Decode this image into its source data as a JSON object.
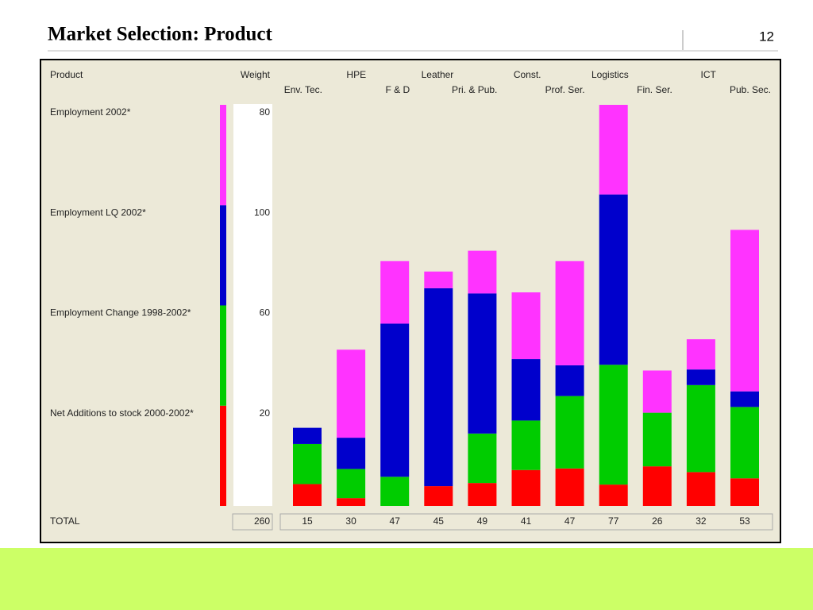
{
  "slide_title": "Market Selection: Product",
  "page_number": "12",
  "chart_data": {
    "type": "bar",
    "stacked": true,
    "row_header": "Product",
    "weight_header": "Weight",
    "total_label": "TOTAL",
    "total_weight": 260,
    "categories": [
      "Env. Tec.",
      "HPE",
      "F & D",
      "Leather",
      "Pri. & Pub.",
      "Const.",
      "Prof. Ser.",
      "Logistics",
      "Fin. Ser.",
      "ICT",
      "Pub. Sec."
    ],
    "ylim": [
      0,
      77
    ],
    "series": [
      {
        "name": "Net Additions to stock 2000-2002*",
        "weight": 20,
        "color": "#ff0000",
        "values": [
          4.2,
          1.5,
          0,
          3.8,
          4.4,
          6.9,
          7.2,
          4.1,
          7.6,
          6.5,
          5.3
        ]
      },
      {
        "name": "Employment Change 1998-2002*",
        "weight": 60,
        "color": "#00cc00",
        "values": [
          7.7,
          5.6,
          5.6,
          0,
          9.5,
          9.5,
          13.9,
          23.0,
          10.3,
          16.7,
          13.7
        ]
      },
      {
        "name": "Employment LQ 2002*",
        "weight": 100,
        "color": "#0000cc",
        "values": [
          3.1,
          6.0,
          29.4,
          38.0,
          26.9,
          11.8,
          5.9,
          32.7,
          0,
          3.0,
          3.0
        ]
      },
      {
        "name": "Employment 2002*",
        "weight": 80,
        "color": "#ff33ff",
        "values": [
          0,
          16.9,
          12.0,
          3.2,
          8.2,
          12.8,
          20.0,
          17.2,
          8.1,
          5.8,
          31.0
        ]
      }
    ],
    "totals": [
      15,
      30,
      47,
      45,
      49,
      41,
      47,
      77,
      26,
      32,
      53
    ]
  }
}
